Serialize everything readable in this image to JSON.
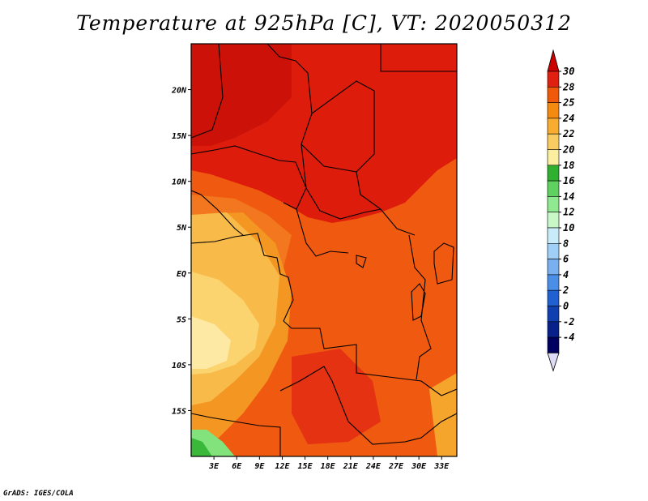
{
  "title": "Temperature at 925hPa [C], VT: 2020050312",
  "credit": "GrADS: IGES/COLA",
  "chart_data": {
    "type": "heatmap",
    "title": "Temperature at 925hPa [C], VT: 2020050312",
    "variable": "Temperature at 925hPa",
    "units": "C",
    "valid_time": "2020050312",
    "x_ticks": [
      "3E",
      "6E",
      "9E",
      "12E",
      "15E",
      "18E",
      "21E",
      "24E",
      "27E",
      "30E",
      "33E"
    ],
    "x_tick_values": [
      3,
      6,
      9,
      12,
      15,
      18,
      21,
      24,
      27,
      30,
      33
    ],
    "y_ticks": [
      "20N",
      "15N",
      "10N",
      "5N",
      "EQ",
      "5S",
      "10S",
      "15S"
    ],
    "y_tick_values": [
      20,
      15,
      10,
      5,
      0,
      -5,
      -10,
      -15
    ],
    "xlim": [
      0,
      35
    ],
    "ylim": [
      -20,
      25
    ],
    "colorbar": {
      "labels": [
        "30",
        "28",
        "25",
        "24",
        "22",
        "20",
        "18",
        "16",
        "14",
        "12",
        "10",
        "8",
        "6",
        "4",
        "2",
        "0",
        "-2",
        "-4"
      ],
      "levels": [
        30,
        28,
        25,
        24,
        22,
        20,
        18,
        16,
        14,
        12,
        10,
        8,
        6,
        4,
        2,
        0,
        -2,
        -4
      ],
      "colors": [
        "#cc0000",
        "#e02010",
        "#f0580a",
        "#f58a10",
        "#f8ac30",
        "#f8cc60",
        "#fbeea0",
        "#30b030",
        "#60d060",
        "#90e890",
        "#c8f8c8",
        "#c8ecfa",
        "#a0d0f8",
        "#78b0f0",
        "#4a8ee8",
        "#2060d0",
        "#1040b0",
        "#08208a",
        "#000060",
        "#dcdcf8"
      ]
    }
  }
}
